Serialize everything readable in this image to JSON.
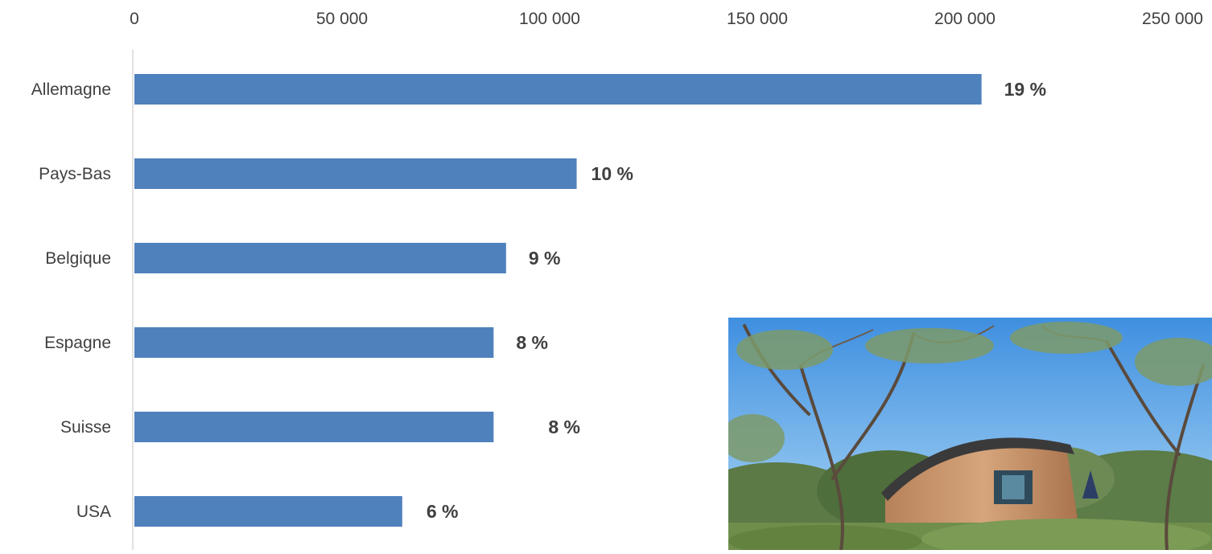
{
  "chart_data": {
    "type": "bar",
    "orientation": "horizontal",
    "categories": [
      "Allemagne",
      "Pays-Bas",
      "Belgique",
      "Espagne",
      "Suisse",
      "USA"
    ],
    "values": [
      204000,
      106500,
      89500,
      86500,
      86500,
      64500
    ],
    "data_labels": [
      "19 %",
      "10 %",
      "9 %",
      "8 %",
      "8 %",
      "6 %"
    ],
    "xlim": [
      0,
      250000
    ],
    "x_ticks": [
      0,
      50000,
      100000,
      150000,
      200000,
      250000
    ],
    "x_tick_labels": [
      "0",
      "50 000",
      "100 000",
      "150 000",
      "200 000",
      "250 000"
    ],
    "x_axis_position": "top",
    "grid": false,
    "legend": "none",
    "bar_color": "#4f81bd"
  },
  "photo": {
    "description_icon": "camping-pod-photo"
  }
}
